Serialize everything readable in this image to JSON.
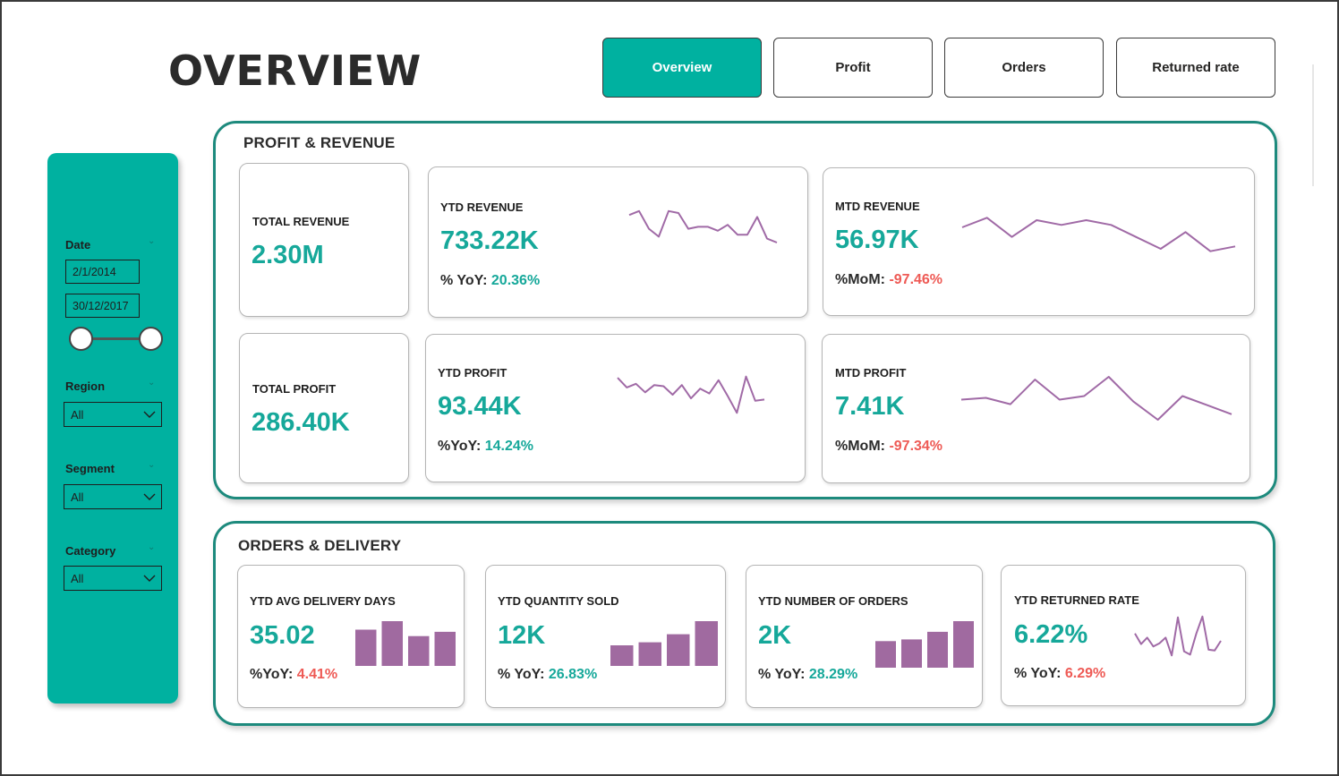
{
  "page": {
    "title": "OVERVIEW"
  },
  "nav": {
    "tabs": [
      {
        "label": "Overview",
        "active": true
      },
      {
        "label": "Profit",
        "active": false
      },
      {
        "label": "Orders",
        "active": false
      },
      {
        "label": "Returned rate",
        "active": false
      }
    ]
  },
  "filters": {
    "date": {
      "label": "Date",
      "start": "2/1/2014",
      "end": "30/12/2017"
    },
    "region": {
      "label": "Region",
      "value": "All"
    },
    "segment": {
      "label": "Segment",
      "value": "All"
    },
    "category": {
      "label": "Category",
      "value": "All"
    }
  },
  "profit_revenue": {
    "title": "PROFIT & REVENUE",
    "total_revenue": {
      "title": "TOTAL REVENUE",
      "value": "2.30M"
    },
    "ytd_revenue": {
      "title": "YTD REVENUE",
      "value": "733.22K",
      "change_label": "% YoY:",
      "change_value": "20.36%",
      "sparkline": [
        34,
        36,
        27,
        23,
        36,
        35,
        27,
        28,
        28,
        26,
        29,
        24,
        24,
        33,
        22,
        20
      ]
    },
    "mtd_revenue": {
      "title": "MTD REVENUE",
      "value": "56.97K",
      "change_label": "%MoM:",
      "change_value": "-97.46%",
      "sparkline": [
        27,
        31,
        23,
        30,
        28,
        30,
        28,
        23,
        18,
        25,
        17,
        19
      ]
    },
    "total_profit": {
      "title": "TOTAL PROFIT",
      "value": "286.40K"
    },
    "ytd_profit": {
      "title": "YTD PROFIT",
      "value": "93.44K",
      "change_label": "%YoY:",
      "change_value": "14.24%",
      "sparkline": [
        43,
        35,
        38,
        31,
        37,
        36,
        29,
        37,
        26,
        34,
        30,
        41,
        28,
        14,
        44,
        24,
        25
      ]
    },
    "mtd_profit": {
      "title": "MTD PROFIT",
      "value": "7.41K",
      "change_label": "%MoM:",
      "change_value": "-97.34%",
      "sparkline": [
        38,
        40,
        33,
        60,
        38,
        42,
        63,
        36,
        16,
        42,
        32,
        22
      ]
    }
  },
  "orders_delivery": {
    "title": "ORDERS & DELIVERY",
    "avg_delivery": {
      "title": "YTD AVG DELIVERY DAYS",
      "value": "35.02",
      "change_label": "%YoY:",
      "change_value": "4.41%",
      "bars": [
        35.2,
        35.6,
        34.9,
        35.1
      ]
    },
    "quantity": {
      "title": "YTD QUANTITY SOLD",
      "value": "12K",
      "change_label": "% YoY:",
      "change_value": "26.83%",
      "bars": [
        7.6,
        8.2,
        9.8,
        12.4
      ]
    },
    "orders": {
      "title": "YTD NUMBER OF ORDERS",
      "value": "2K",
      "change_label": "% YoY:",
      "change_value": "28.29%",
      "bars": [
        1.0,
        1.05,
        1.28,
        1.6
      ]
    },
    "returned_rate": {
      "title": "YTD RETURNED RATE",
      "value": "6.22%",
      "change_label": "% YoY:",
      "change_value": "6.29%",
      "sparkline": [
        55,
        42,
        50,
        39,
        43,
        50,
        28,
        75,
        33,
        29,
        55,
        76,
        35,
        34,
        46
      ]
    }
  },
  "colors": {
    "accent": "#00b1a0",
    "value_teal": "#16a89a",
    "negative": "#ee5a55",
    "spark": "#a06aa6",
    "bar": "#a06aa0",
    "section_border": "#1d8a7d"
  }
}
